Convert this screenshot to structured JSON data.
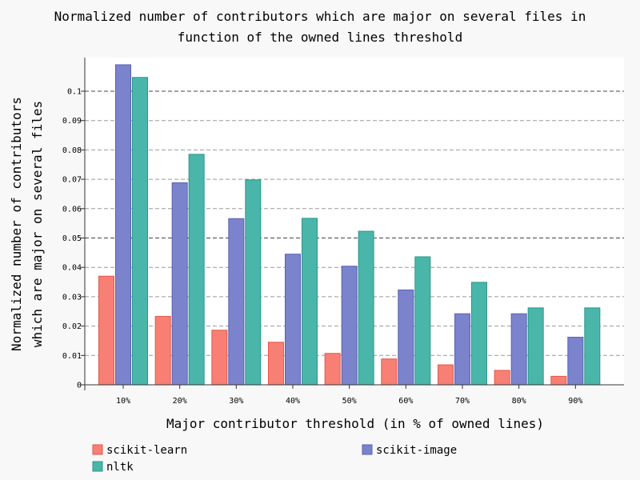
{
  "chart_data": {
    "type": "bar",
    "title": [
      "Normalized number of contributors which are major on several files in",
      "function of the owned lines threshold"
    ],
    "xlabel": "Major contributor threshold (in % of owned lines)",
    "ylabel": [
      "Normalized number of contributors",
      "which are major on several files"
    ],
    "categories": [
      "10%",
      "20%",
      "30%",
      "40%",
      "50%",
      "60%",
      "70%",
      "80%",
      "90%"
    ],
    "yticks": [
      "0",
      "0.01",
      "0.02",
      "0.03",
      "0.04",
      "0.05",
      "0.06",
      "0.07",
      "0.08",
      "0.09",
      "0.1"
    ],
    "ylim": [
      0,
      0.1115
    ],
    "grid": "horizontal dashed",
    "legend_position": "bottom",
    "series": [
      {
        "name": "scikit-learn",
        "color": "#f87f73",
        "stroke": "#e4574b",
        "values": [
          0.037,
          0.0233,
          0.0186,
          0.0145,
          0.0107,
          0.0088,
          0.0068,
          0.0049,
          0.0029
        ]
      },
      {
        "name": "scikit-image",
        "color": "#7b83cc",
        "stroke": "#5860b4",
        "values": [
          0.109,
          0.0688,
          0.0566,
          0.0445,
          0.0404,
          0.0323,
          0.0242,
          0.0242,
          0.0162
        ]
      },
      {
        "name": "nltk",
        "color": "#4ab6aa",
        "stroke": "#2a968a",
        "values": [
          0.1047,
          0.0785,
          0.0698,
          0.0567,
          0.0523,
          0.0436,
          0.0349,
          0.0262,
          0.0262
        ]
      }
    ]
  }
}
